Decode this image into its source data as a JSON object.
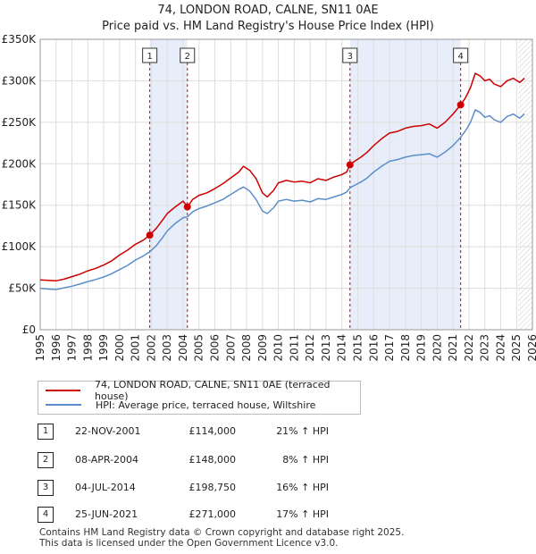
{
  "title": "74, LONDON ROAD, CALNE, SN11 0AE",
  "subtitle": "Price paid vs. HM Land Registry's House Price Index (HPI)",
  "chart_data": {
    "type": "line",
    "xlim": [
      1995,
      2026
    ],
    "ylim": [
      0,
      350000
    ],
    "x_ticks": [
      "1995",
      "1996",
      "1997",
      "1998",
      "1999",
      "2000",
      "2001",
      "2002",
      "2003",
      "2004",
      "2005",
      "2006",
      "2007",
      "2008",
      "2009",
      "2010",
      "2011",
      "2012",
      "2013",
      "2014",
      "2015",
      "2016",
      "2017",
      "2018",
      "2019",
      "2020",
      "2021",
      "2022",
      "2023",
      "2024",
      "2025",
      "2026"
    ],
    "y_ticks": [
      {
        "value": 0,
        "label": "£0"
      },
      {
        "value": 50000,
        "label": "£50K"
      },
      {
        "value": 100000,
        "label": "£100K"
      },
      {
        "value": 150000,
        "label": "£150K"
      },
      {
        "value": 200000,
        "label": "£200K"
      },
      {
        "value": 250000,
        "label": "£250K"
      },
      {
        "value": 300000,
        "label": "£300K"
      },
      {
        "value": 350000,
        "label": "£350K"
      }
    ],
    "grid": true,
    "series": [
      {
        "name": "74, LONDON ROAD, CALNE, SN11 0AE (terraced house)",
        "color": "#cc0000",
        "points": [
          [
            1995.0,
            60000
          ],
          [
            1995.5,
            59500
          ],
          [
            1996.0,
            59000
          ],
          [
            1996.5,
            61000
          ],
          [
            1997.0,
            64000
          ],
          [
            1997.5,
            67000
          ],
          [
            1998.0,
            71000
          ],
          [
            1998.5,
            74000
          ],
          [
            1999.0,
            78000
          ],
          [
            1999.5,
            83000
          ],
          [
            2000.0,
            90000
          ],
          [
            2000.5,
            96000
          ],
          [
            2001.0,
            103000
          ],
          [
            2001.5,
            108000
          ],
          [
            2001.9,
            114000
          ],
          [
            2002.3,
            122000
          ],
          [
            2002.7,
            132000
          ],
          [
            2003.0,
            140000
          ],
          [
            2003.5,
            148000
          ],
          [
            2004.0,
            155000
          ],
          [
            2004.27,
            148000
          ],
          [
            2004.6,
            157000
          ],
          [
            2005.0,
            162000
          ],
          [
            2005.5,
            165000
          ],
          [
            2006.0,
            170000
          ],
          [
            2006.5,
            176000
          ],
          [
            2007.0,
            183000
          ],
          [
            2007.5,
            190000
          ],
          [
            2007.8,
            197000
          ],
          [
            2008.2,
            192000
          ],
          [
            2008.6,
            182000
          ],
          [
            2009.0,
            165000
          ],
          [
            2009.3,
            160000
          ],
          [
            2009.7,
            168000
          ],
          [
            2010.0,
            177000
          ],
          [
            2010.5,
            180000
          ],
          [
            2011.0,
            178000
          ],
          [
            2011.5,
            179000
          ],
          [
            2012.0,
            177000
          ],
          [
            2012.5,
            182000
          ],
          [
            2013.0,
            180000
          ],
          [
            2013.5,
            184000
          ],
          [
            2014.0,
            187000
          ],
          [
            2014.3,
            190000
          ],
          [
            2014.51,
            198750
          ],
          [
            2014.8,
            203000
          ],
          [
            2015.2,
            208000
          ],
          [
            2015.6,
            214000
          ],
          [
            2016.0,
            222000
          ],
          [
            2016.5,
            230000
          ],
          [
            2017.0,
            237000
          ],
          [
            2017.5,
            239000
          ],
          [
            2018.0,
            243000
          ],
          [
            2018.5,
            245000
          ],
          [
            2019.0,
            246000
          ],
          [
            2019.5,
            248000
          ],
          [
            2020.0,
            243000
          ],
          [
            2020.5,
            250000
          ],
          [
            2021.0,
            260000
          ],
          [
            2021.48,
            271000
          ],
          [
            2021.8,
            280000
          ],
          [
            2022.1,
            292000
          ],
          [
            2022.4,
            309000
          ],
          [
            2022.7,
            306000
          ],
          [
            2023.0,
            300000
          ],
          [
            2023.3,
            302000
          ],
          [
            2023.6,
            296000
          ],
          [
            2024.0,
            293000
          ],
          [
            2024.4,
            300000
          ],
          [
            2024.8,
            303000
          ],
          [
            2025.2,
            298000
          ],
          [
            2025.5,
            303000
          ]
        ]
      },
      {
        "name": "HPI: Average price, terraced house, Wiltshire",
        "color": "#5b8ec9",
        "points": [
          [
            1995.0,
            50000
          ],
          [
            1995.5,
            49000
          ],
          [
            1996.0,
            48500
          ],
          [
            1996.5,
            50500
          ],
          [
            1997.0,
            52500
          ],
          [
            1997.5,
            55000
          ],
          [
            1998.0,
            58000
          ],
          [
            1998.5,
            60500
          ],
          [
            1999.0,
            63500
          ],
          [
            1999.5,
            67500
          ],
          [
            2000.0,
            72500
          ],
          [
            2000.5,
            77500
          ],
          [
            2001.0,
            84000
          ],
          [
            2001.5,
            89000
          ],
          [
            2001.9,
            94000
          ],
          [
            2002.3,
            101000
          ],
          [
            2002.7,
            111000
          ],
          [
            2003.0,
            119000
          ],
          [
            2003.5,
            128000
          ],
          [
            2004.0,
            135000
          ],
          [
            2004.27,
            136000
          ],
          [
            2004.6,
            142000
          ],
          [
            2005.0,
            146000
          ],
          [
            2005.5,
            149000
          ],
          [
            2006.0,
            153000
          ],
          [
            2006.5,
            157000
          ],
          [
            2007.0,
            163000
          ],
          [
            2007.5,
            169000
          ],
          [
            2007.8,
            172000
          ],
          [
            2008.2,
            167000
          ],
          [
            2008.6,
            157000
          ],
          [
            2009.0,
            143000
          ],
          [
            2009.3,
            140000
          ],
          [
            2009.7,
            147000
          ],
          [
            2010.0,
            155000
          ],
          [
            2010.5,
            157000
          ],
          [
            2011.0,
            155000
          ],
          [
            2011.5,
            156000
          ],
          [
            2012.0,
            154000
          ],
          [
            2012.5,
            158000
          ],
          [
            2013.0,
            157000
          ],
          [
            2013.5,
            160000
          ],
          [
            2014.0,
            163000
          ],
          [
            2014.3,
            166000
          ],
          [
            2014.51,
            171000
          ],
          [
            2014.8,
            174000
          ],
          [
            2015.2,
            178000
          ],
          [
            2015.6,
            183000
          ],
          [
            2016.0,
            190000
          ],
          [
            2016.5,
            197000
          ],
          [
            2017.0,
            203000
          ],
          [
            2017.5,
            205000
          ],
          [
            2018.0,
            208000
          ],
          [
            2018.5,
            210000
          ],
          [
            2019.0,
            211000
          ],
          [
            2019.5,
            212000
          ],
          [
            2020.0,
            208000
          ],
          [
            2020.5,
            214000
          ],
          [
            2021.0,
            222000
          ],
          [
            2021.48,
            232000
          ],
          [
            2021.8,
            240000
          ],
          [
            2022.1,
            250000
          ],
          [
            2022.4,
            265000
          ],
          [
            2022.7,
            262000
          ],
          [
            2023.0,
            256000
          ],
          [
            2023.3,
            258000
          ],
          [
            2023.6,
            253000
          ],
          [
            2024.0,
            250000
          ],
          [
            2024.4,
            257000
          ],
          [
            2024.8,
            260000
          ],
          [
            2025.2,
            255000
          ],
          [
            2025.5,
            260000
          ]
        ]
      }
    ],
    "sales": [
      {
        "n": "1",
        "x": 2001.9,
        "value": 114000
      },
      {
        "n": "2",
        "x": 2004.27,
        "value": 148000
      },
      {
        "n": "3",
        "x": 2014.51,
        "value": 198750
      },
      {
        "n": "4",
        "x": 2021.48,
        "value": 271000
      }
    ],
    "shaded_periods": [
      [
        2001.9,
        2004.27
      ],
      [
        2014.51,
        2021.48
      ]
    ],
    "future_from": 2025.1
  },
  "legend": {
    "property": "74, LONDON ROAD, CALNE, SN11 0AE (terraced house)",
    "hpi": "HPI: Average price, terraced house, Wiltshire"
  },
  "transactions": [
    {
      "n": "1",
      "date": "22-NOV-2001",
      "price": "£114,000",
      "hpi": "21% ↑ HPI"
    },
    {
      "n": "2",
      "date": "08-APR-2004",
      "price": "£148,000",
      "hpi": "8% ↑ HPI"
    },
    {
      "n": "3",
      "date": "04-JUL-2014",
      "price": "£198,750",
      "hpi": "16% ↑ HPI"
    },
    {
      "n": "4",
      "date": "25-JUN-2021",
      "price": "£271,000",
      "hpi": "17% ↑ HPI"
    }
  ],
  "footer": {
    "line1": "Contains HM Land Registry data © Crown copyright and database right 2025.",
    "line2": "This data is licensed under the Open Government Licence v3.0."
  }
}
